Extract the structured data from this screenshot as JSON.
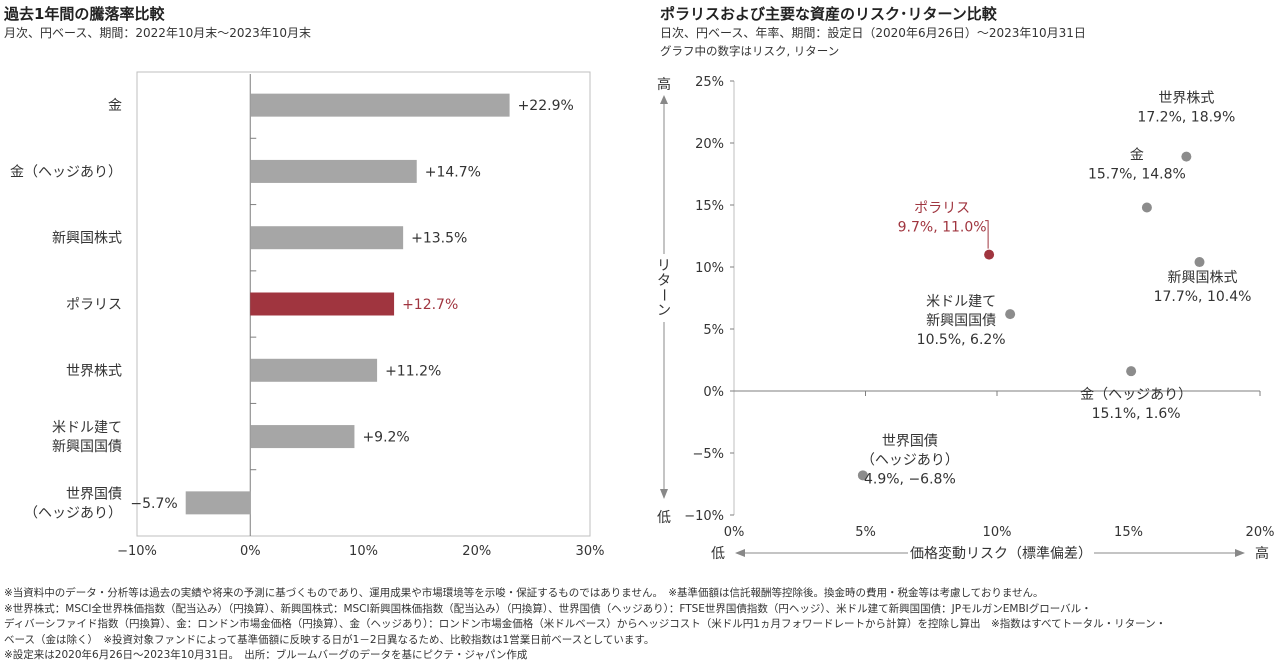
{
  "left": {
    "title": "過去1年間の騰落率比較",
    "subtitle": "月次、円ベース、期間：2022年10月末～2023年10月末"
  },
  "right": {
    "title": "ポラリスおよび主要な資産のリスク･リターン比較",
    "subtitle1": "日次、円ベース、年率、期間：設定日（2020年6月26日）～2023年10月31日",
    "subtitle2": "グラフ中の数字はリスク, リターン"
  },
  "colors": {
    "bar": "#a6a6a6",
    "highlight": "#a0353f",
    "axis": "#7f7f7f",
    "border": "#bfbfbf"
  },
  "chart_data": [
    {
      "type": "bar",
      "orientation": "horizontal",
      "categories": [
        [
          "金"
        ],
        [
          "金（ヘッジあり）"
        ],
        [
          "新興国株式"
        ],
        [
          "ポラリス"
        ],
        [
          "世界株式"
        ],
        [
          "米ドル建て",
          "新興国国債"
        ],
        [
          "世界国債",
          "（ヘッジあり）"
        ]
      ],
      "values": [
        22.9,
        14.7,
        13.5,
        12.7,
        11.2,
        9.2,
        -5.7
      ],
      "value_labels": [
        "+22.9%",
        "+14.7%",
        "+13.5%",
        "+12.7%",
        "+11.2%",
        "+9.2%",
        "−5.7%"
      ],
      "highlight_index": 3,
      "xlim": [
        -10,
        30
      ],
      "xticks": [
        -10,
        0,
        10,
        20,
        30
      ],
      "xtick_labels": [
        "−10%",
        "0%",
        "10%",
        "20%",
        "30%"
      ]
    },
    {
      "type": "scatter",
      "xlabel": "価格変動リスク（標準偏差）",
      "ylabel": "リターン",
      "x_low": "低",
      "x_high": "高",
      "y_high": "高",
      "y_low": "低",
      "xlim": [
        0,
        20
      ],
      "ylim": [
        -10,
        25
      ],
      "xticks": [
        0,
        5,
        10,
        15,
        20
      ],
      "xtick_labels": [
        "0%",
        "5%",
        "10%",
        "15%",
        "20%"
      ],
      "yticks": [
        -10,
        -5,
        0,
        5,
        10,
        15,
        20,
        25
      ],
      "ytick_labels": [
        "−10%",
        "−5%",
        "0%",
        "5%",
        "10%",
        "15%",
        "20%",
        "25%"
      ],
      "points": [
        {
          "name": "世界株式",
          "lines": [
            "世界株式",
            "17.2%, 18.9%"
          ],
          "x": 17.2,
          "y": 18.9
        },
        {
          "name": "金",
          "lines": [
            "金",
            "15.7%, 14.8%"
          ],
          "x": 15.7,
          "y": 14.8
        },
        {
          "name": "ポラリス",
          "lines": [
            "ポラリス",
            "9.7%, 11.0%"
          ],
          "x": 9.7,
          "y": 11.0,
          "highlight": true
        },
        {
          "name": "新興国株式",
          "lines": [
            "新興国株式",
            "17.7%, 10.4%"
          ],
          "x": 17.7,
          "y": 10.4
        },
        {
          "name": "米ドル建て新興国国債",
          "lines": [
            "米ドル建て",
            "新興国国債",
            "10.5%, 6.2%"
          ],
          "x": 10.5,
          "y": 6.2
        },
        {
          "name": "金（ヘッジあり）",
          "lines": [
            "金（ヘッジあり）",
            "15.1%, 1.6%"
          ],
          "x": 15.1,
          "y": 1.6
        },
        {
          "name": "世界国債（ヘッジあり）",
          "lines": [
            "世界国債",
            "（ヘッジあり）",
            "4.9%, −6.8%"
          ],
          "x": 4.9,
          "y": -6.8
        }
      ]
    }
  ],
  "footnotes": [
    "※当資料中のデータ・分析等は過去の実績や将来の予測に基づくものであり、運用成果や市場環境等を示唆・保証するものではありません。　※基準価額は信託報酬等控除後。換金時の費用・税金等は考慮しておりません。",
    "※世界株式：MSCI全世界株価指数（配当込み）（円換算）、新興国株式：MSCI新興国株価指数（配当込み）（円換算）、世界国債（ヘッジあり）：FTSE世界国債指数（円ヘッジ）、米ドル建て新興国国債：JPモルガンEMBIグローバル・",
    "ディバーシファイド指数（円換算）、金：ロンドン市場金価格（円換算）、金（ヘッジあり）：ロンドン市場金価格（米ドルベース）からヘッジコスト（米ドル円1ヵ月フォワードレートから計算）を控除し算出　※指数はすべてトータル・リターン・",
    "ベース（金は除く）　※投資対象ファンドによって基準価額に反映する日が1－2日異なるため、比較指数は1営業日前ベースとしています。",
    "※設定来は2020年6月26日～2023年10月31日。　出所：ブルームバーグのデータを基にピクテ・ジャパン作成"
  ]
}
